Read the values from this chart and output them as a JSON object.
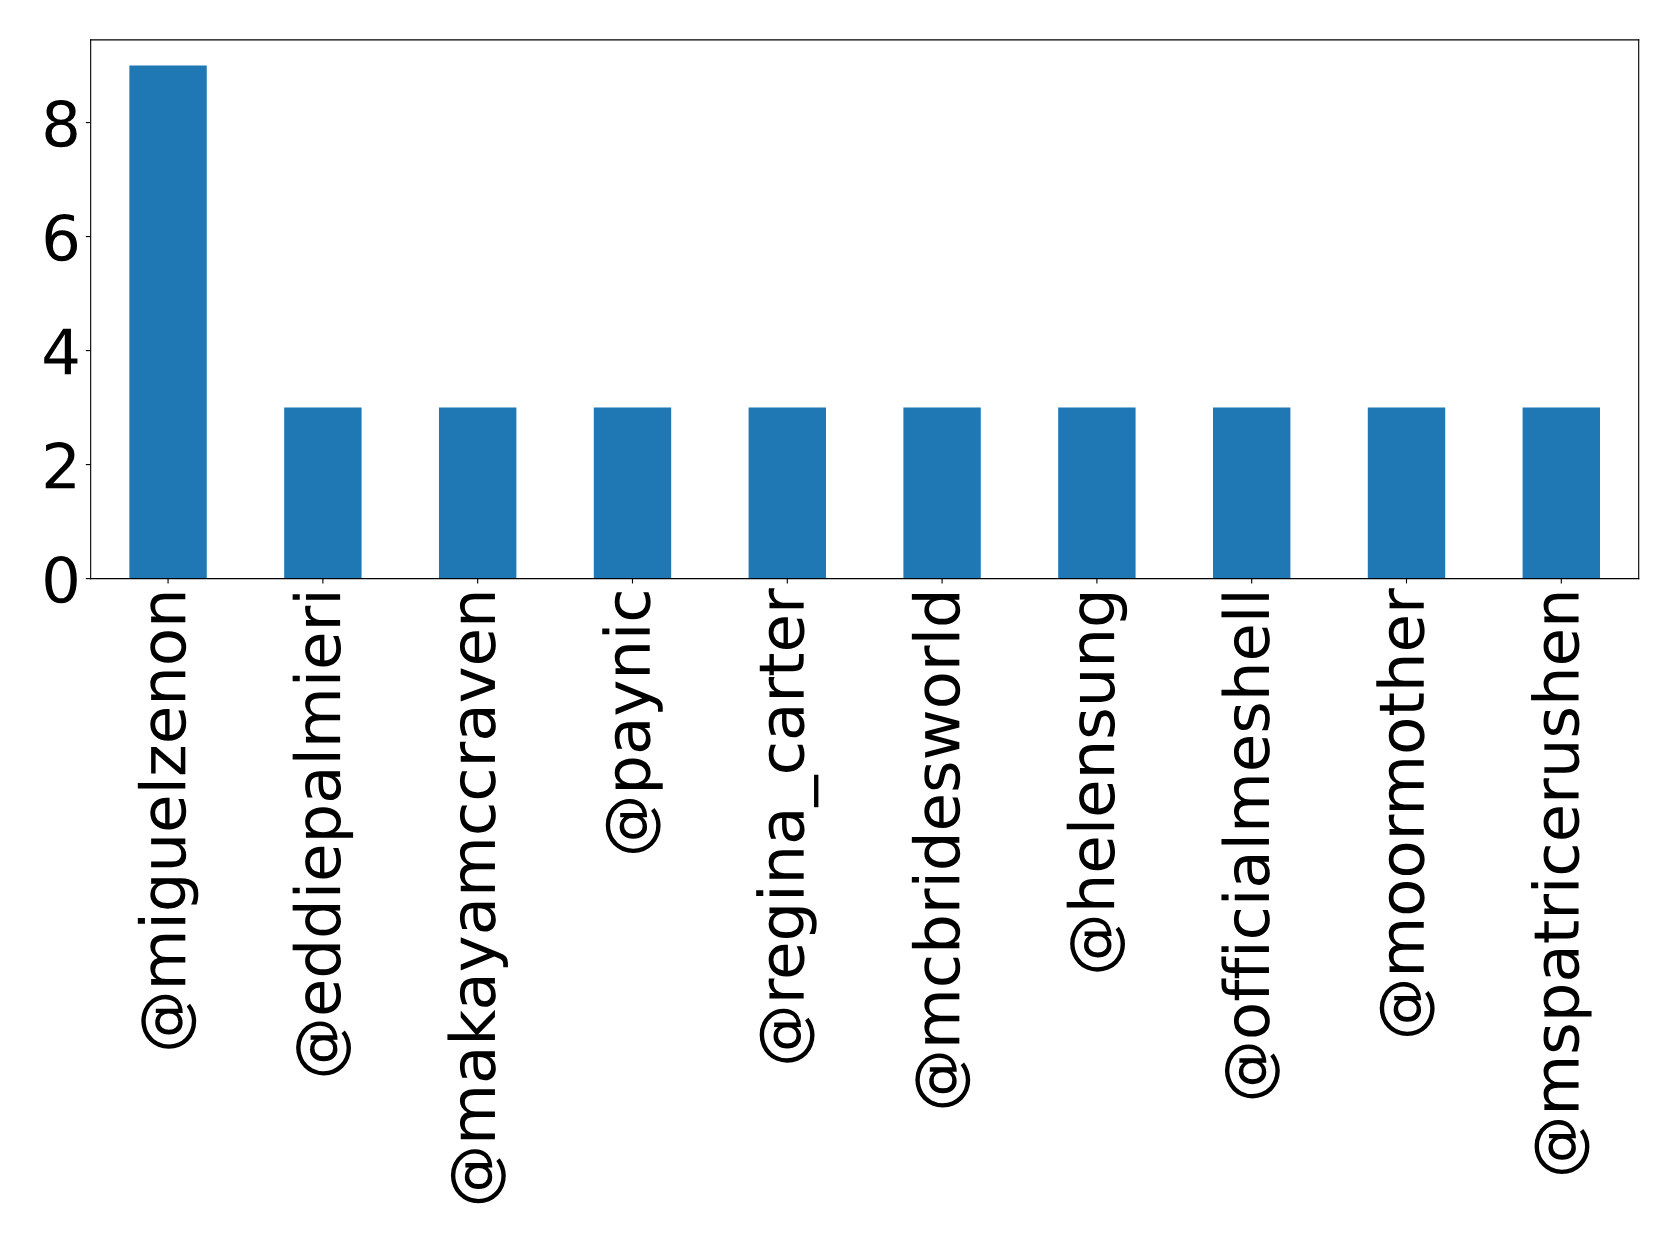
{
  "chart_data": {
    "type": "bar",
    "categories": [
      "@miguelzenon",
      "@eddiepalmieri",
      "@makayamccraven",
      "@paynic",
      "@regina_carter",
      "@mcbridesworld",
      "@helensung",
      "@officialmeshell",
      "@moormother",
      "@mspatricerushen"
    ],
    "values": [
      9,
      3,
      3,
      3,
      3,
      3,
      3,
      3,
      3,
      3
    ],
    "color": "#1f77b4",
    "ylim": [
      0,
      9.45
    ],
    "yticks": [
      0,
      2,
      4,
      6,
      8
    ],
    "grid": false
  }
}
